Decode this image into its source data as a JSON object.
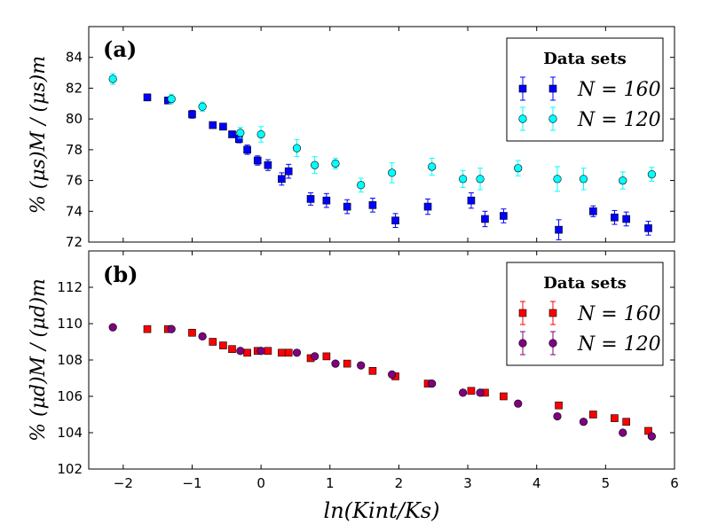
{
  "chart_data": [
    {
      "type": "scatter",
      "panel_label": "(a)",
      "ylabel": "% (μs)M / (μs)m",
      "xlim": [
        -2.5,
        6
      ],
      "ylim": [
        72,
        86
      ],
      "yticks": [
        72,
        74,
        76,
        78,
        80,
        82,
        84
      ],
      "legend": {
        "title": "Data sets",
        "placement": "top-right"
      },
      "series": [
        {
          "name": "N = 160",
          "marker": "square",
          "color": "#0000ff",
          "errorbar_color": "#0000ff",
          "x": [
            -1.65,
            -1.35,
            -1.0,
            -0.7,
            -0.55,
            -0.42,
            -0.32,
            -0.2,
            -0.05,
            0.1,
            0.3,
            0.4,
            0.72,
            0.95,
            1.25,
            1.62,
            1.95,
            2.42,
            3.05,
            3.25,
            3.52,
            4.32,
            4.82,
            5.13,
            5.3,
            5.62
          ],
          "y": [
            81.4,
            81.2,
            80.3,
            79.6,
            79.5,
            79.0,
            78.7,
            78.0,
            77.3,
            77.0,
            76.1,
            76.6,
            74.8,
            74.7,
            74.3,
            74.4,
            73.4,
            74.3,
            74.7,
            73.5,
            73.7,
            72.8,
            74.0,
            73.6,
            73.5,
            72.9
          ],
          "yerr": [
            0.15,
            0.2,
            0.25,
            0.2,
            0.2,
            0.2,
            0.25,
            0.3,
            0.3,
            0.35,
            0.4,
            0.45,
            0.4,
            0.45,
            0.45,
            0.45,
            0.45,
            0.5,
            0.5,
            0.5,
            0.45,
            0.65,
            0.35,
            0.45,
            0.45,
            0.45
          ]
        },
        {
          "name": "N = 120",
          "marker": "circle",
          "color": "#00ffff",
          "errorbar_color": "#00ffff",
          "x": [
            -2.15,
            -1.3,
            -0.85,
            -0.3,
            0.0,
            0.52,
            0.78,
            1.08,
            1.45,
            1.9,
            2.48,
            2.93,
            3.18,
            3.73,
            4.3,
            4.68,
            5.25,
            5.67
          ],
          "y": [
            82.6,
            81.3,
            80.8,
            79.1,
            79.0,
            78.1,
            77.0,
            77.1,
            75.7,
            76.5,
            76.9,
            76.1,
            76.1,
            76.8,
            76.1,
            76.1,
            76.0,
            76.4
          ],
          "yerr": [
            0.35,
            0.3,
            0.3,
            0.35,
            0.5,
            0.55,
            0.55,
            0.35,
            0.45,
            0.65,
            0.55,
            0.55,
            0.7,
            0.5,
            0.8,
            0.7,
            0.55,
            0.45
          ]
        }
      ]
    },
    {
      "type": "scatter",
      "panel_label": "(b)",
      "ylabel": "% (μd)M / (μd)m",
      "xlabel": "ln(Kint/Ks)",
      "xlim": [
        -2.5,
        6
      ],
      "ylim": [
        102,
        114
      ],
      "yticks": [
        102,
        104,
        106,
        108,
        110,
        112
      ],
      "xticks": [
        -2,
        -1,
        0,
        1,
        2,
        3,
        4,
        5,
        6
      ],
      "legend": {
        "title": "Data sets",
        "placement": "top-right"
      },
      "series": [
        {
          "name": "N = 160",
          "marker": "square",
          "color": "#ff0000",
          "errorbar_color": "#ff0000",
          "x": [
            -1.65,
            -1.35,
            -1.0,
            -0.7,
            -0.55,
            -0.42,
            -0.2,
            -0.05,
            0.1,
            0.3,
            0.4,
            0.72,
            0.95,
            1.25,
            1.62,
            1.95,
            2.42,
            3.05,
            3.25,
            3.52,
            4.32,
            4.82,
            5.13,
            5.3,
            5.62
          ],
          "y": [
            109.7,
            109.7,
            109.5,
            109.0,
            108.8,
            108.6,
            108.4,
            108.5,
            108.5,
            108.4,
            108.4,
            108.1,
            108.2,
            107.8,
            107.4,
            107.1,
            106.7,
            106.3,
            106.2,
            106.0,
            105.5,
            105.0,
            104.8,
            104.6,
            104.1
          ],
          "yerr": [
            0.05,
            0.05,
            0.05,
            0.05,
            0.05,
            0.05,
            0.05,
            0.05,
            0.05,
            0.05,
            0.05,
            0.05,
            0.05,
            0.05,
            0.05,
            0.05,
            0.05,
            0.05,
            0.05,
            0.05,
            0.05,
            0.05,
            0.05,
            0.05,
            0.05
          ]
        },
        {
          "name": "N = 120",
          "marker": "circle",
          "color": "#800080",
          "errorbar_color": "#800080",
          "x": [
            -2.15,
            -1.3,
            -0.85,
            -0.3,
            0.0,
            0.52,
            0.78,
            1.08,
            1.45,
            1.9,
            2.48,
            2.93,
            3.18,
            3.73,
            4.3,
            4.68,
            5.25,
            5.67
          ],
          "y": [
            109.8,
            109.7,
            109.3,
            108.5,
            108.5,
            108.4,
            108.2,
            107.8,
            107.7,
            107.2,
            106.7,
            106.2,
            106.2,
            105.6,
            104.9,
            104.6,
            104.0,
            103.8
          ],
          "yerr": [
            0.05,
            0.05,
            0.05,
            0.05,
            0.05,
            0.05,
            0.05,
            0.05,
            0.05,
            0.05,
            0.05,
            0.05,
            0.05,
            0.05,
            0.05,
            0.05,
            0.05,
            0.05
          ]
        }
      ]
    }
  ]
}
